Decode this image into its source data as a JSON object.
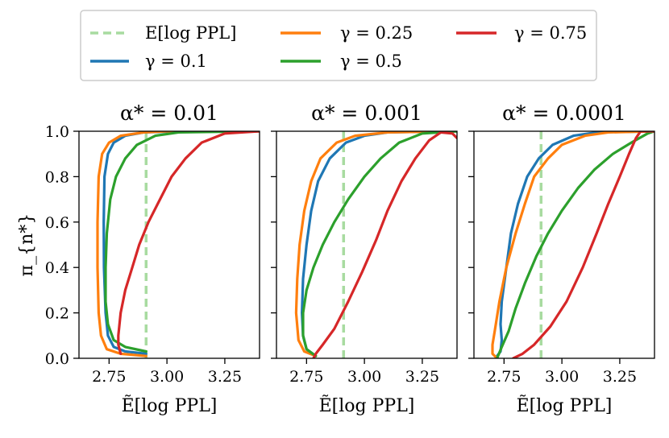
{
  "chart_data": {
    "type": "line",
    "ylabel": "π_{n*}",
    "xlabel": "Ẽ[log PPL]",
    "xlim": [
      2.62,
      3.4
    ],
    "ylim": [
      0.0,
      1.0
    ],
    "xticks": [
      2.75,
      3.0,
      3.25
    ],
    "xtick_labels": [
      "2.75",
      "3.00",
      "3.25"
    ],
    "yticks": [
      0.0,
      0.2,
      0.4,
      0.6,
      0.8,
      1.0
    ],
    "ytick_labels": [
      "0.0",
      "0.2",
      "0.4",
      "0.6",
      "0.8",
      "1.0"
    ],
    "legend": {
      "placement": "top",
      "entries": [
        {
          "label": "E[log PPL]",
          "color": "#a8dba0",
          "style": "dashed"
        },
        {
          "label": "γ = 0.1",
          "color": "#1f77b4",
          "style": "solid"
        },
        {
          "label": "γ = 0.25",
          "color": "#ff7f0e",
          "style": "solid"
        },
        {
          "label": "γ = 0.5",
          "color": "#2ca02c",
          "style": "solid"
        },
        {
          "label": "γ = 0.75",
          "color": "#d62728",
          "style": "solid"
        }
      ]
    },
    "panels": [
      {
        "title": "α* = 0.01",
        "reference_x": 2.91,
        "series": [
          {
            "name": "γ = 0.1",
            "color": "#1f77b4",
            "points": [
              [
                2.91,
                0.02
              ],
              [
                2.82,
                0.03
              ],
              [
                2.77,
                0.05
              ],
              [
                2.745,
                0.1
              ],
              [
                2.735,
                0.2
              ],
              [
                2.728,
                0.4
              ],
              [
                2.727,
                0.6
              ],
              [
                2.73,
                0.8
              ],
              [
                2.745,
                0.9
              ],
              [
                2.77,
                0.95
              ],
              [
                2.82,
                0.98
              ],
              [
                2.9,
                0.995
              ],
              [
                3.05,
                1.0
              ],
              [
                3.4,
                1.0
              ]
            ]
          },
          {
            "name": "γ = 0.25",
            "color": "#ff7f0e",
            "points": [
              [
                2.91,
                0.01
              ],
              [
                2.8,
                0.02
              ],
              [
                2.74,
                0.04
              ],
              [
                2.715,
                0.1
              ],
              [
                2.705,
                0.2
              ],
              [
                2.7,
                0.4
              ],
              [
                2.7,
                0.6
              ],
              [
                2.705,
                0.8
              ],
              [
                2.72,
                0.9
              ],
              [
                2.75,
                0.95
              ],
              [
                2.8,
                0.98
              ],
              [
                2.9,
                0.995
              ],
              [
                3.0,
                1.0
              ],
              [
                3.4,
                1.0
              ]
            ]
          },
          {
            "name": "γ = 0.5",
            "color": "#2ca02c",
            "points": [
              [
                2.91,
                0.03
              ],
              [
                2.82,
                0.05
              ],
              [
                2.77,
                0.08
              ],
              [
                2.745,
                0.15
              ],
              [
                2.735,
                0.25
              ],
              [
                2.735,
                0.4
              ],
              [
                2.74,
                0.55
              ],
              [
                2.755,
                0.7
              ],
              [
                2.78,
                0.8
              ],
              [
                2.82,
                0.88
              ],
              [
                2.87,
                0.94
              ],
              [
                2.95,
                0.98
              ],
              [
                3.05,
                0.995
              ],
              [
                3.4,
                1.0
              ]
            ]
          },
          {
            "name": "γ = 0.75",
            "color": "#d62728",
            "points": [
              [
                2.8,
                0.02
              ],
              [
                2.79,
                0.06
              ],
              [
                2.79,
                0.1
              ],
              [
                2.8,
                0.2
              ],
              [
                2.82,
                0.3
              ],
              [
                2.85,
                0.4
              ],
              [
                2.88,
                0.5
              ],
              [
                2.92,
                0.6
              ],
              [
                2.97,
                0.7
              ],
              [
                3.02,
                0.8
              ],
              [
                3.08,
                0.88
              ],
              [
                3.15,
                0.95
              ],
              [
                3.25,
                0.99
              ],
              [
                3.4,
                1.0
              ]
            ]
          }
        ]
      },
      {
        "title": "α* = 0.001",
        "reference_x": 2.91,
        "series": [
          {
            "name": "γ = 0.1",
            "color": "#1f77b4",
            "points": [
              [
                2.79,
                0.01
              ],
              [
                2.75,
                0.04
              ],
              [
                2.735,
                0.1
              ],
              [
                2.73,
                0.2
              ],
              [
                2.735,
                0.35
              ],
              [
                2.75,
                0.5
              ],
              [
                2.77,
                0.65
              ],
              [
                2.8,
                0.78
              ],
              [
                2.85,
                0.88
              ],
              [
                2.92,
                0.95
              ],
              [
                3.0,
                0.98
              ],
              [
                3.1,
                0.995
              ],
              [
                3.4,
                1.0
              ]
            ]
          },
          {
            "name": "γ = 0.25",
            "color": "#ff7f0e",
            "points": [
              [
                2.79,
                0.01
              ],
              [
                2.74,
                0.03
              ],
              [
                2.715,
                0.08
              ],
              [
                2.705,
                0.2
              ],
              [
                2.71,
                0.35
              ],
              [
                2.72,
                0.5
              ],
              [
                2.74,
                0.65
              ],
              [
                2.77,
                0.78
              ],
              [
                2.81,
                0.88
              ],
              [
                2.88,
                0.95
              ],
              [
                2.96,
                0.98
              ],
              [
                3.1,
                0.995
              ],
              [
                3.4,
                1.0
              ]
            ]
          },
          {
            "name": "γ = 0.5",
            "color": "#2ca02c",
            "points": [
              [
                2.79,
                0.01
              ],
              [
                2.75,
                0.04
              ],
              [
                2.735,
                0.1
              ],
              [
                2.735,
                0.2
              ],
              [
                2.75,
                0.3
              ],
              [
                2.78,
                0.4
              ],
              [
                2.82,
                0.5
              ],
              [
                2.87,
                0.6
              ],
              [
                2.93,
                0.7
              ],
              [
                3.0,
                0.8
              ],
              [
                3.07,
                0.88
              ],
              [
                3.15,
                0.95
              ],
              [
                3.25,
                0.99
              ],
              [
                3.4,
                1.0
              ]
            ]
          },
          {
            "name": "γ = 0.75",
            "color": "#d62728",
            "points": [
              [
                2.78,
                0.0
              ],
              [
                2.79,
                0.02
              ],
              [
                2.82,
                0.06
              ],
              [
                2.87,
                0.13
              ],
              [
                2.93,
                0.25
              ],
              [
                2.99,
                0.38
              ],
              [
                3.05,
                0.52
              ],
              [
                3.1,
                0.65
              ],
              [
                3.16,
                0.78
              ],
              [
                3.22,
                0.88
              ],
              [
                3.28,
                0.96
              ],
              [
                3.33,
                0.995
              ],
              [
                3.38,
                0.99
              ],
              [
                3.4,
                0.97
              ]
            ]
          }
        ]
      },
      {
        "title": "α* = 0.0001",
        "reference_x": 2.91,
        "series": [
          {
            "name": "γ = 0.1",
            "color": "#1f77b4",
            "points": [
              [
                2.72,
                0.01
              ],
              [
                2.735,
                0.03
              ],
              [
                2.74,
                0.08
              ],
              [
                2.735,
                0.15
              ],
              [
                2.74,
                0.25
              ],
              [
                2.76,
                0.4
              ],
              [
                2.78,
                0.55
              ],
              [
                2.81,
                0.68
              ],
              [
                2.85,
                0.8
              ],
              [
                2.9,
                0.88
              ],
              [
                2.96,
                0.94
              ],
              [
                3.05,
                0.98
              ],
              [
                3.15,
                0.995
              ],
              [
                3.4,
                1.0
              ]
            ]
          },
          {
            "name": "γ = 0.25",
            "color": "#ff7f0e",
            "points": [
              [
                2.72,
                0.0
              ],
              [
                2.7,
                0.02
              ],
              [
                2.7,
                0.06
              ],
              [
                2.71,
                0.12
              ],
              [
                2.73,
                0.25
              ],
              [
                2.76,
                0.4
              ],
              [
                2.8,
                0.55
              ],
              [
                2.84,
                0.68
              ],
              [
                2.88,
                0.8
              ],
              [
                2.94,
                0.88
              ],
              [
                3.0,
                0.94
              ],
              [
                3.1,
                0.98
              ],
              [
                3.2,
                0.995
              ],
              [
                3.4,
                1.0
              ]
            ]
          },
          {
            "name": "γ = 0.5",
            "color": "#2ca02c",
            "points": [
              [
                2.72,
                0.0
              ],
              [
                2.74,
                0.05
              ],
              [
                2.77,
                0.12
              ],
              [
                2.8,
                0.22
              ],
              [
                2.84,
                0.33
              ],
              [
                2.89,
                0.45
              ],
              [
                2.94,
                0.55
              ],
              [
                3.0,
                0.65
              ],
              [
                3.07,
                0.75
              ],
              [
                3.14,
                0.83
              ],
              [
                3.22,
                0.9
              ],
              [
                3.3,
                0.95
              ],
              [
                3.37,
                0.99
              ],
              [
                3.4,
                1.0
              ]
            ]
          },
          {
            "name": "γ = 0.75",
            "color": "#d62728",
            "points": [
              [
                2.79,
                0.0
              ],
              [
                2.83,
                0.02
              ],
              [
                2.88,
                0.06
              ],
              [
                2.95,
                0.14
              ],
              [
                3.02,
                0.25
              ],
              [
                3.09,
                0.4
              ],
              [
                3.15,
                0.55
              ],
              [
                3.2,
                0.68
              ],
              [
                3.25,
                0.8
              ],
              [
                3.29,
                0.9
              ],
              [
                3.32,
                0.97
              ],
              [
                3.34,
                1.0
              ],
              [
                3.4,
                1.0
              ]
            ]
          }
        ]
      }
    ]
  }
}
